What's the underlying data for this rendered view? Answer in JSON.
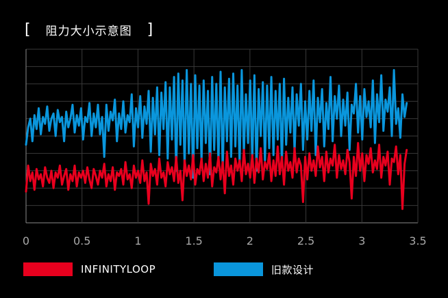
{
  "title": {
    "open": "[",
    "text": "阻力大小示意图",
    "close": "]"
  },
  "chart_data": {
    "type": "line",
    "xlim": [
      0,
      3.5
    ],
    "ylim": [
      0,
      100
    ],
    "x_ticks": [
      "0",
      "0.5",
      "1",
      "1.5",
      "2",
      "2.5",
      "3",
      "3.5"
    ],
    "grid": true,
    "y_axis_labels": false,
    "legend_position": "bottom",
    "series": [
      {
        "name": "INFINITYLOOP",
        "color": "#e8001e",
        "x_start": 0,
        "x_end": 3.4,
        "values": [
          18,
          33,
          24,
          29,
          19,
          31,
          25,
          28,
          21,
          32,
          26,
          23,
          30,
          20,
          29,
          26,
          33,
          22,
          27,
          31,
          19,
          28,
          24,
          33,
          21,
          29,
          26,
          30,
          23,
          32,
          25,
          20,
          31,
          27,
          22,
          30,
          26,
          34,
          21,
          28,
          24,
          32,
          19,
          29,
          27,
          31,
          22,
          35,
          25,
          28,
          20,
          33,
          26,
          30,
          23,
          36,
          24,
          29,
          11,
          34,
          27,
          31,
          22,
          37,
          26,
          29,
          21,
          35,
          28,
          32,
          24,
          38,
          23,
          30,
          13,
          36,
          27,
          33,
          25,
          39,
          22,
          31,
          28,
          37,
          24,
          34,
          26,
          40,
          21,
          32,
          29,
          38,
          25,
          35,
          17,
          41,
          27,
          33,
          22,
          37,
          30,
          36,
          24,
          42,
          28,
          34,
          26,
          39,
          23,
          37,
          29,
          43,
          25,
          35,
          31,
          40,
          24,
          36,
          27,
          44,
          28,
          38,
          22,
          41,
          30,
          35,
          26,
          43,
          29,
          37,
          33,
          12,
          38,
          25,
          40,
          30,
          36,
          27,
          44,
          32,
          38,
          24,
          41,
          29,
          37,
          33,
          45,
          26,
          39,
          31,
          36,
          28,
          42,
          35,
          14,
          38,
          27,
          46,
          30,
          40,
          24,
          39,
          34,
          43,
          29,
          36,
          31,
          45,
          26,
          38,
          33,
          41,
          22,
          37,
          35,
          44,
          28,
          39,
          8,
          34,
          42
        ]
      },
      {
        "name": "旧款设计",
        "color": "#0a96dc",
        "x_start": 0,
        "x_end": 3.4,
        "values": [
          45,
          55,
          60,
          47,
          62,
          54,
          66,
          51,
          61,
          57,
          67,
          53,
          60,
          63,
          50,
          65,
          58,
          61,
          47,
          64,
          55,
          60,
          68,
          52,
          62,
          56,
          66,
          48,
          61,
          58,
          69,
          50,
          63,
          55,
          68,
          51,
          61,
          38,
          68,
          53,
          64,
          59,
          71,
          47,
          63,
          54,
          70,
          52,
          62,
          58,
          74,
          44,
          66,
          55,
          73,
          49,
          67,
          57,
          76,
          41,
          72,
          51,
          78,
          39,
          75,
          54,
          81,
          37,
          78,
          48,
          84,
          30,
          86,
          45,
          82,
          33,
          88,
          40,
          80,
          26,
          85,
          43,
          79,
          36,
          82,
          46,
          76,
          28,
          84,
          42,
          80,
          35,
          87,
          31,
          78,
          47,
          83,
          38,
          86,
          44,
          79,
          34,
          88,
          40,
          74,
          46,
          82,
          37,
          85,
          30,
          77,
          50,
          81,
          36,
          79,
          43,
          84,
          39,
          76,
          48,
          80,
          34,
          83,
          45,
          72,
          52,
          78,
          41,
          74,
          56,
          80,
          42,
          70,
          48,
          76,
          53,
          82,
          39,
          72,
          58,
          77,
          44,
          69,
          54,
          84,
          47,
          73,
          60,
          79,
          50,
          71,
          56,
          75,
          42,
          68,
          63,
          80,
          52,
          73,
          48,
          77,
          61,
          70,
          55,
          82,
          46,
          74,
          58,
          85,
          53,
          71,
          64,
          78,
          50,
          88,
          57,
          66,
          49,
          74,
          61,
          69
        ]
      }
    ]
  },
  "legend": [
    {
      "label": "INFINITYLOOP",
      "color": "#e8001e"
    },
    {
      "label": "旧款设计",
      "color": "#0a96dc"
    }
  ]
}
